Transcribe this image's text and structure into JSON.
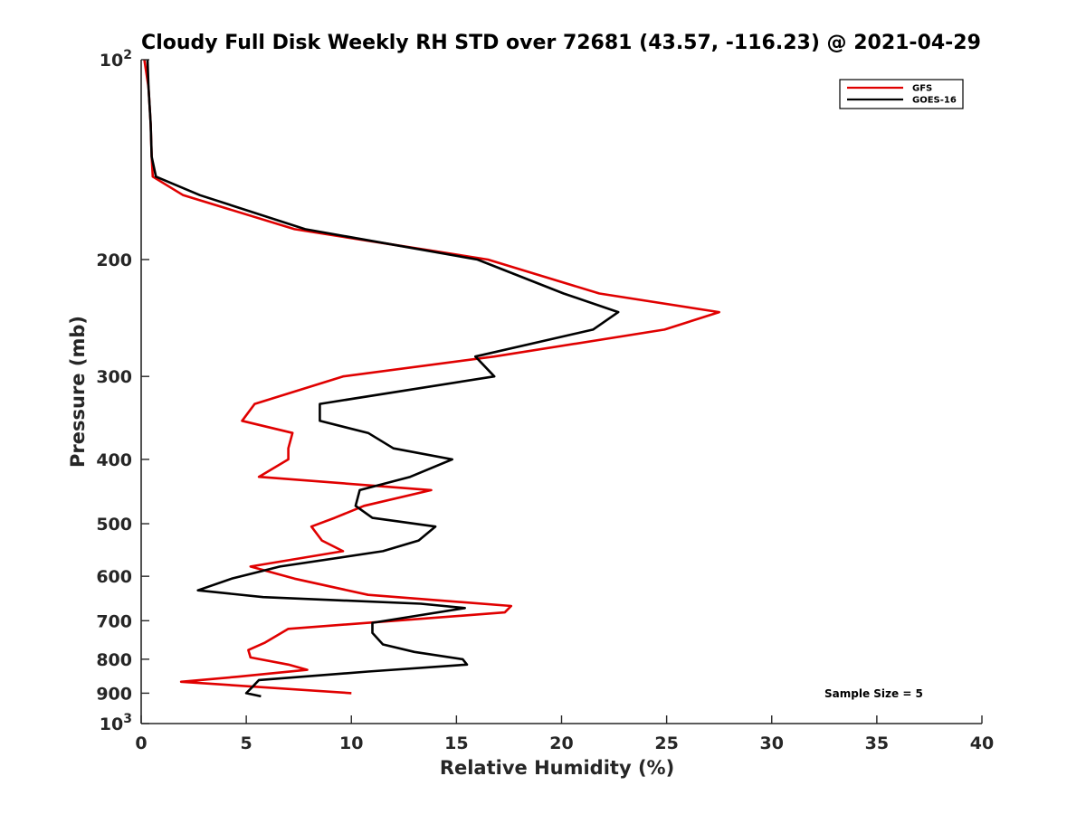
{
  "chart_data": {
    "type": "line",
    "title": "Cloudy Full Disk Weekly RH STD over 72681 (43.57, -116.23) @ 2021-04-29",
    "xlabel": "Relative Humidity (%)",
    "ylabel": "Pressure (mb)",
    "xlim": [
      0,
      40
    ],
    "ylim": [
      100,
      1000
    ],
    "y_scale": "log",
    "y_reversed": true,
    "grid": false,
    "legend_position": "top-right",
    "annotation": "Sample Size = 5",
    "x_ticks": [
      "0",
      "5",
      "10",
      "15",
      "20",
      "25",
      "30",
      "35",
      "40"
    ],
    "y_ticks": [
      {
        "value": 100,
        "base": "10",
        "exp": "2"
      },
      {
        "value": 200,
        "label": "200"
      },
      {
        "value": 300,
        "label": "300"
      },
      {
        "value": 400,
        "label": "400"
      },
      {
        "value": 500,
        "label": "500"
      },
      {
        "value": 600,
        "label": "600"
      },
      {
        "value": 700,
        "label": "700"
      },
      {
        "value": 800,
        "label": "800"
      },
      {
        "value": 900,
        "label": "900"
      },
      {
        "value": 1000,
        "base": "10",
        "exp": "3"
      }
    ],
    "series": [
      {
        "name": "GFS",
        "color": "#e00000",
        "points": [
          [
            0.15,
            100
          ],
          [
            0.35,
            110
          ],
          [
            0.45,
            125
          ],
          [
            0.5,
            140
          ],
          [
            0.55,
            150
          ],
          [
            2.0,
            160
          ],
          [
            7.3,
            180
          ],
          [
            16.5,
            200
          ],
          [
            21.8,
            225
          ],
          [
            27.5,
            240
          ],
          [
            24.9,
            255
          ],
          [
            16.8,
            280
          ],
          [
            9.6,
            300
          ],
          [
            5.4,
            330
          ],
          [
            4.8,
            350
          ],
          [
            7.2,
            365
          ],
          [
            7.0,
            385
          ],
          [
            7.0,
            400
          ],
          [
            5.6,
            425
          ],
          [
            13.8,
            445
          ],
          [
            10.6,
            470
          ],
          [
            9.2,
            490
          ],
          [
            8.1,
            505
          ],
          [
            8.6,
            530
          ],
          [
            9.6,
            550
          ],
          [
            5.2,
            580
          ],
          [
            7.3,
            605
          ],
          [
            10.8,
            640
          ],
          [
            17.6,
            665
          ],
          [
            17.3,
            680
          ],
          [
            7.0,
            720
          ],
          [
            5.9,
            755
          ],
          [
            5.1,
            775
          ],
          [
            5.2,
            795
          ],
          [
            7.0,
            815
          ],
          [
            7.9,
            830
          ],
          [
            4.6,
            850
          ],
          [
            1.9,
            865
          ],
          [
            10.0,
            900
          ]
        ]
      },
      {
        "name": "GOES-16",
        "color": "#000000",
        "points": [
          [
            0.3,
            100
          ],
          [
            0.35,
            110
          ],
          [
            0.45,
            125
          ],
          [
            0.5,
            140
          ],
          [
            0.7,
            150
          ],
          [
            2.8,
            160
          ],
          [
            7.8,
            180
          ],
          [
            16.0,
            200
          ],
          [
            20.1,
            225
          ],
          [
            22.7,
            240
          ],
          [
            21.5,
            255
          ],
          [
            15.9,
            280
          ],
          [
            16.8,
            300
          ],
          [
            8.5,
            330
          ],
          [
            8.5,
            350
          ],
          [
            10.8,
            365
          ],
          [
            12.0,
            385
          ],
          [
            14.8,
            400
          ],
          [
            12.8,
            425
          ],
          [
            10.4,
            445
          ],
          [
            10.2,
            470
          ],
          [
            11.0,
            490
          ],
          [
            14.0,
            505
          ],
          [
            13.2,
            530
          ],
          [
            11.5,
            550
          ],
          [
            6.6,
            580
          ],
          [
            4.3,
            605
          ],
          [
            2.7,
            630
          ],
          [
            5.8,
            645
          ],
          [
            13.3,
            660
          ],
          [
            15.4,
            670
          ],
          [
            11.0,
            705
          ],
          [
            11.0,
            730
          ],
          [
            11.5,
            760
          ],
          [
            13.0,
            780
          ],
          [
            15.3,
            800
          ],
          [
            15.5,
            815
          ],
          [
            10.8,
            835
          ],
          [
            5.6,
            860
          ],
          [
            5.3,
            880
          ],
          [
            5.0,
            900
          ],
          [
            5.7,
            910
          ]
        ]
      }
    ]
  }
}
